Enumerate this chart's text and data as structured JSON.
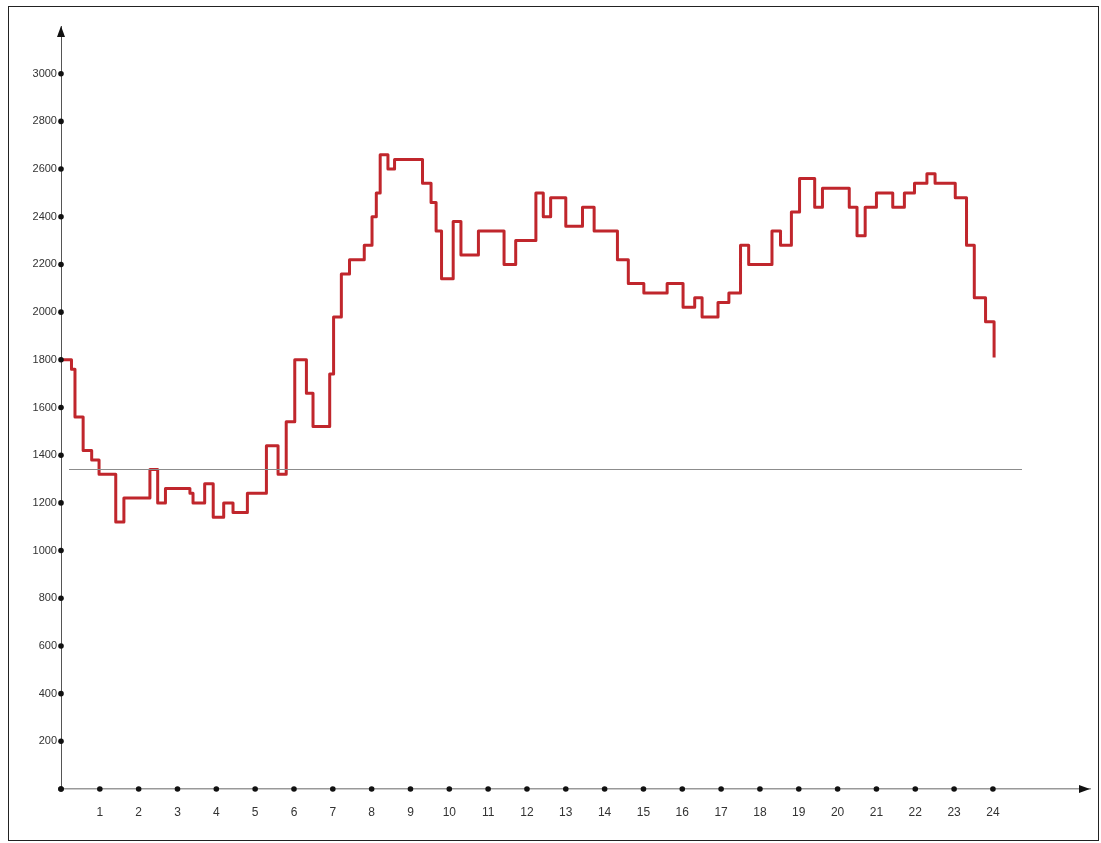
{
  "chart_data": {
    "type": "step",
    "xlim": [
      0,
      26.5
    ],
    "ylim": [
      0,
      3200
    ],
    "xticks": [
      {
        "value": 0,
        "label": null
      },
      1,
      2,
      3,
      4,
      5,
      6,
      7,
      8,
      9,
      10,
      11,
      12,
      13,
      14,
      15,
      16,
      17,
      18,
      19,
      20,
      21,
      22,
      23,
      24
    ],
    "yticks": [
      {
        "value": 0,
        "label": null
      },
      200,
      400,
      600,
      800,
      1000,
      1200,
      1400,
      1600,
      1800,
      2000,
      2200,
      2400,
      2600,
      2800,
      3000
    ],
    "grid": false,
    "legend": false,
    "marker": "none",
    "line_style": "solid",
    "ref_lines": [
      {
        "axis": "y",
        "value": 1340,
        "color": "#8c8c8c"
      }
    ],
    "series": [
      {
        "color": "#c0262c",
        "x": [
          0,
          0.27,
          0.36,
          0.57,
          0.79,
          0.98,
          1.41,
          1.62,
          2.29,
          2.49,
          2.69,
          3.32,
          3.4,
          3.7,
          3.92,
          4.19,
          4.43,
          4.8,
          5.29,
          5.59,
          5.8,
          6.02,
          6.32,
          6.49,
          6.92,
          7.02,
          7.22,
          7.43,
          7.81,
          8.01,
          8.12,
          8.22,
          8.42,
          8.59,
          9.31,
          9.53,
          9.66,
          9.8,
          10.1,
          10.3,
          10.75,
          11.41,
          11.71,
          12.23,
          12.42,
          12.61,
          13.0,
          13.43,
          13.73,
          14.33,
          14.61,
          15.01,
          15.61,
          16.02,
          16.32,
          16.51,
          16.92,
          17.2,
          17.5,
          17.71,
          18.31,
          18.53,
          18.81,
          19.02,
          19.41,
          19.61,
          20.3,
          20.5,
          20.71,
          21.0,
          21.42,
          21.72,
          21.98,
          22.3,
          22.51,
          23.03,
          23.32,
          23.52,
          23.81,
          24.03
        ],
        "values": [
          1800,
          1760,
          1560,
          1420,
          1380,
          1320,
          1120,
          1220,
          1340,
          1200,
          1260,
          1240,
          1200,
          1280,
          1140,
          1200,
          1160,
          1240,
          1440,
          1320,
          1540,
          1800,
          1660,
          1520,
          1740,
          1980,
          2160,
          2220,
          2280,
          2400,
          2500,
          2660,
          2600,
          2640,
          2540,
          2460,
          2340,
          2140,
          2380,
          2240,
          2340,
          2200,
          2300,
          2500,
          2400,
          2480,
          2360,
          2440,
          2340,
          2220,
          2120,
          2080,
          2120,
          2020,
          2060,
          1980,
          2040,
          2080,
          2280,
          2200,
          2340,
          2280,
          2420,
          2560,
          2440,
          2520,
          2440,
          2320,
          2440,
          2500,
          2440,
          2500,
          2540,
          2580,
          2540,
          2480,
          2280,
          2060,
          1960,
          1810
        ]
      }
    ]
  }
}
